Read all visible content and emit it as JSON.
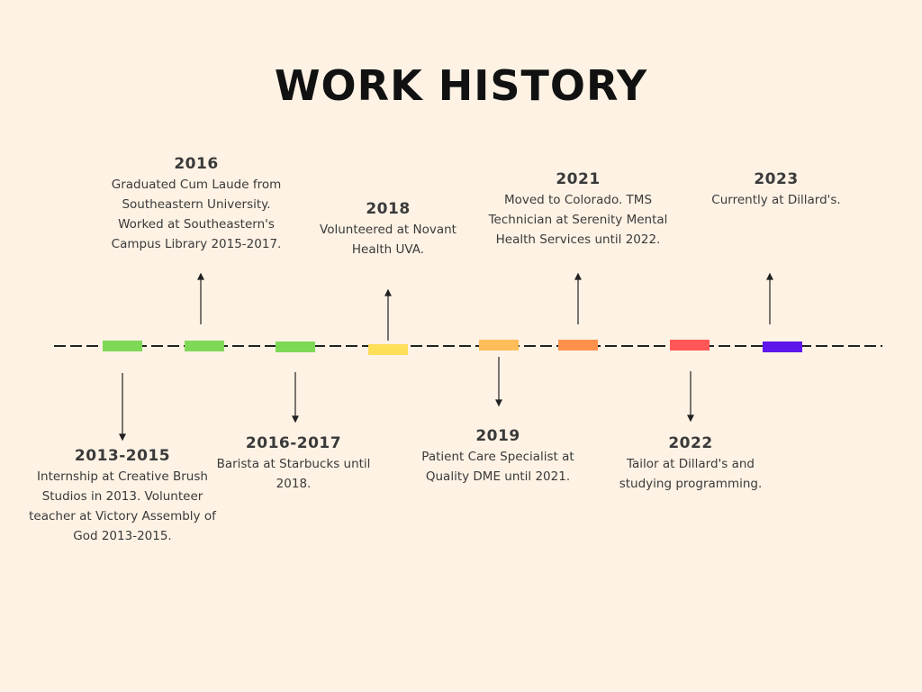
{
  "title": "WORK HISTORY",
  "events": [
    {
      "year": "2013-2015",
      "color": "#7ed957",
      "description": "Internship at Creative Brush Studios in 2013. Volunteer teacher at Victory Assembly of God 2013-2015."
    },
    {
      "year": "2016",
      "color": "#7ed957",
      "description": "Graduated Cum Laude from Southeastern University. Worked at Southeastern's Campus Library 2015-2017."
    },
    {
      "year": "2016-2017",
      "color": "#7ed957",
      "description": "Barista at Starbucks until 2018."
    },
    {
      "year": "2018",
      "color": "#ffde59",
      "description": "Volunteered at Novant Health UVA."
    },
    {
      "year": "2019",
      "color": "#ffbd59",
      "description": "Patient Care Specialist at Quality DME until 2021."
    },
    {
      "year": "2021",
      "color": "#ff914d",
      "description": "Moved to Colorado. TMS Technician at Serenity Mental Health Services until 2022."
    },
    {
      "year": "2022",
      "color": "#ff5757",
      "description": "Tailor at Dillard's and studying programming."
    },
    {
      "year": "2023",
      "color": "#5e17eb",
      "description": "Currently at Dillard's."
    }
  ]
}
